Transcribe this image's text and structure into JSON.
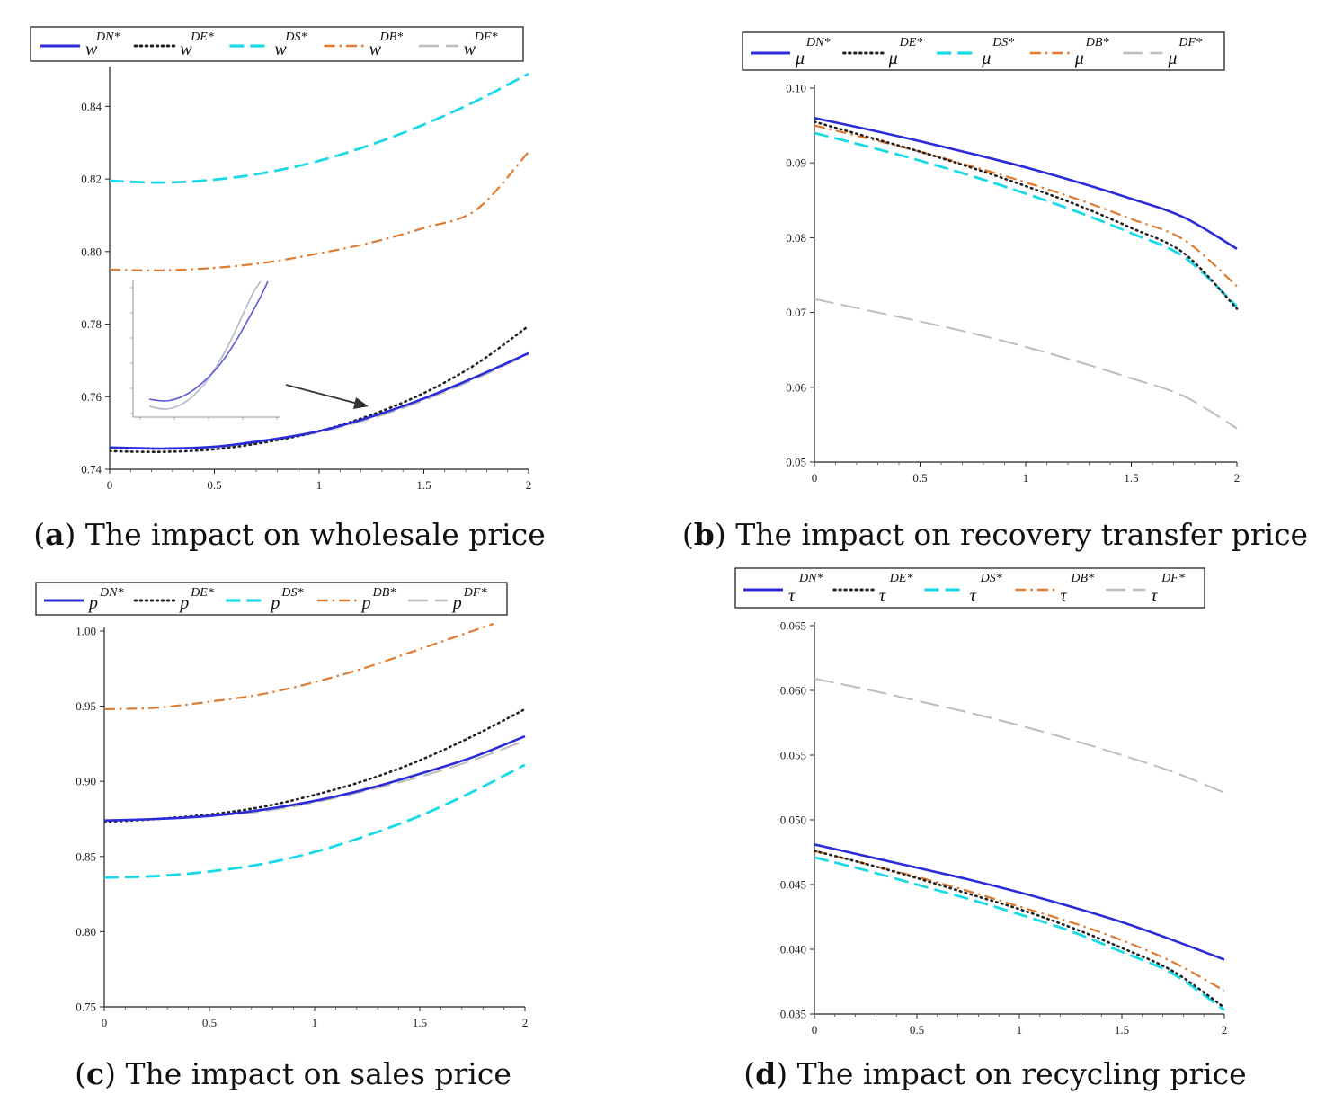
{
  "figure": {
    "captions": [
      {
        "letter": "a",
        "text": ") The impact on wholesale price"
      },
      {
        "letter": "b",
        "text": ") The impact on recovery transfer price"
      },
      {
        "letter": "c",
        "text": ") The impact on sales price"
      },
      {
        "letter": "d",
        "text": ") The impact on recycling price"
      }
    ]
  },
  "chart_data": [
    {
      "id": "a",
      "type": "line",
      "title": "The impact on wholesale price",
      "legend_symbol": "w",
      "x": [
        0,
        0.25,
        0.5,
        0.75,
        1,
        1.25,
        1.5,
        1.75,
        2
      ],
      "xlim": [
        0,
        2
      ],
      "ylim": [
        0.74,
        0.85
      ],
      "xticks": [
        "0",
        "0.5",
        "1",
        "1.5",
        "2"
      ],
      "yticks": [
        "0.74",
        "0.76",
        "0.78",
        "0.80",
        "0.82",
        "0.84"
      ],
      "ytick_values": [
        0.74,
        0.76,
        0.78,
        0.8,
        0.82,
        0.84
      ],
      "has_inset": true,
      "series": [
        {
          "name": "DN*",
          "color": "#2b2bd9",
          "style": "solid",
          "values": [
            0.746,
            0.7457,
            0.7462,
            0.748,
            0.7505,
            0.7545,
            0.7595,
            0.7655,
            0.772
          ]
        },
        {
          "name": "DE*",
          "color": "#222222",
          "style": "dotted",
          "values": [
            0.745,
            0.7448,
            0.7455,
            0.7475,
            0.7505,
            0.755,
            0.761,
            0.769,
            0.7795
          ]
        },
        {
          "name": "DS*",
          "color": "#19d9e6",
          "style": "dashed",
          "values": [
            0.8195,
            0.819,
            0.8198,
            0.8218,
            0.825,
            0.8295,
            0.835,
            0.8415,
            0.849
          ]
        },
        {
          "name": "DB*",
          "color": "#e07a2f",
          "style": "dashdot",
          "values": [
            0.795,
            0.7948,
            0.7955,
            0.797,
            0.7995,
            0.8025,
            0.8065,
            0.8115,
            0.8275
          ]
        },
        {
          "name": "DF*",
          "color": "#bdbdbd",
          "style": "longdash",
          "values": [
            0.746,
            0.7456,
            0.746,
            0.7477,
            0.7502,
            0.754,
            0.759,
            0.765,
            0.7718
          ]
        }
      ]
    },
    {
      "id": "b",
      "type": "line",
      "title": "The impact on recovery transfer price",
      "legend_symbol": "μ",
      "x": [
        0,
        0.25,
        0.5,
        0.75,
        1,
        1.25,
        1.5,
        1.75,
        2
      ],
      "xlim": [
        0,
        2
      ],
      "ylim": [
        0.05,
        0.1
      ],
      "xticks": [
        "0",
        "0.5",
        "1",
        "1.5",
        "2"
      ],
      "yticks": [
        "0.05",
        "0.06",
        "0.07",
        "0.08",
        "0.09",
        "0.10"
      ],
      "ytick_values": [
        0.05,
        0.06,
        0.07,
        0.08,
        0.09,
        0.1
      ],
      "has_inset": false,
      "series": [
        {
          "name": "DN*",
          "color": "#2b2bd9",
          "style": "solid",
          "values": [
            0.096,
            0.0945,
            0.0929,
            0.0912,
            0.0894,
            0.0874,
            0.0852,
            0.0827,
            0.0785
          ]
        },
        {
          "name": "DE*",
          "color": "#222222",
          "style": "dotted",
          "values": [
            0.0955,
            0.0935,
            0.0915,
            0.0893,
            0.0869,
            0.0843,
            0.0813,
            0.0779,
            0.0705
          ]
        },
        {
          "name": "DS*",
          "color": "#19d9e6",
          "style": "dashed",
          "values": [
            0.094,
            0.0922,
            0.0903,
            0.0882,
            0.0859,
            0.0834,
            0.0806,
            0.0774,
            0.0708
          ]
        },
        {
          "name": "DB*",
          "color": "#e07a2f",
          "style": "dashdot",
          "values": [
            0.095,
            0.0933,
            0.0915,
            0.0895,
            0.0874,
            0.0851,
            0.0825,
            0.0797,
            0.0735
          ]
        },
        {
          "name": "DF*",
          "color": "#bdbdbd",
          "style": "longdash",
          "values": [
            0.0718,
            0.0703,
            0.0688,
            0.0672,
            0.0654,
            0.0634,
            0.0612,
            0.0588,
            0.0545
          ]
        }
      ]
    },
    {
      "id": "c",
      "type": "line",
      "title": "The impact on sales price",
      "legend_symbol": "p",
      "x": [
        0,
        0.25,
        0.5,
        0.75,
        1,
        1.25,
        1.5,
        1.75,
        2
      ],
      "xlim": [
        0,
        2
      ],
      "ylim": [
        0.75,
        1.0
      ],
      "xticks": [
        "0",
        "0.5",
        "1",
        "1.5",
        "2"
      ],
      "yticks": [
        "0.75",
        "0.80",
        "0.85",
        "0.90",
        "0.95",
        "1.00"
      ],
      "ytick_values": [
        0.75,
        0.8,
        0.85,
        0.9,
        0.95,
        1.0
      ],
      "has_inset": false,
      "series": [
        {
          "name": "DN*",
          "color": "#2b2bd9",
          "style": "solid",
          "values": [
            0.874,
            0.875,
            0.877,
            0.881,
            0.887,
            0.895,
            0.905,
            0.916,
            0.93
          ]
        },
        {
          "name": "DE*",
          "color": "#222222",
          "style": "dotted",
          "values": [
            0.873,
            0.875,
            0.878,
            0.883,
            0.891,
            0.901,
            0.914,
            0.93,
            0.948
          ]
        },
        {
          "name": "DS*",
          "color": "#19d9e6",
          "style": "dashed",
          "values": [
            0.836,
            0.837,
            0.84,
            0.845,
            0.853,
            0.864,
            0.877,
            0.893,
            0.911
          ]
        },
        {
          "name": "DB*",
          "color": "#e07a2f",
          "style": "dashdot",
          "values": [
            0.948,
            0.949,
            0.953,
            0.958,
            0.966,
            0.976,
            0.988,
            1.0,
            null
          ]
        },
        {
          "name": "DF*",
          "color": "#bdbdbd",
          "style": "longdash",
          "values": [
            0.874,
            0.875,
            0.877,
            0.88,
            0.886,
            0.894,
            0.903,
            0.914,
            0.927
          ]
        }
      ]
    },
    {
      "id": "d",
      "type": "line",
      "title": "The impact on recycling price",
      "legend_symbol": "τ",
      "x": [
        0,
        0.25,
        0.5,
        0.75,
        1,
        1.25,
        1.5,
        1.75,
        2
      ],
      "xlim": [
        0,
        2
      ],
      "ylim": [
        0.035,
        0.065
      ],
      "xticks": [
        "0",
        "0.5",
        "1",
        "1.5",
        "2"
      ],
      "yticks": [
        "0.035",
        "0.040",
        "0.045",
        "0.050",
        "0.055",
        "0.060",
        "0.065"
      ],
      "ytick_values": [
        0.035,
        0.04,
        0.045,
        0.05,
        0.055,
        0.06,
        0.065
      ],
      "has_inset": false,
      "series": [
        {
          "name": "DN*",
          "color": "#2b2bd9",
          "style": "solid",
          "values": [
            0.0481,
            0.0472,
            0.0463,
            0.0454,
            0.0444,
            0.0433,
            0.0421,
            0.0407,
            0.0392
          ]
        },
        {
          "name": "DE*",
          "color": "#222222",
          "style": "dotted",
          "values": [
            0.0476,
            0.0466,
            0.0455,
            0.0443,
            0.0431,
            0.0417,
            0.0401,
            0.0383,
            0.0355
          ]
        },
        {
          "name": "DS*",
          "color": "#19d9e6",
          "style": "dashed",
          "values": [
            0.0471,
            0.0461,
            0.045,
            0.0439,
            0.0427,
            0.0414,
            0.0398,
            0.0381,
            0.0353
          ]
        },
        {
          "name": "DB*",
          "color": "#e07a2f",
          "style": "dashdot",
          "values": [
            0.0476,
            0.0466,
            0.0456,
            0.0445,
            0.0433,
            0.0421,
            0.0407,
            0.039,
            0.0368
          ]
        },
        {
          "name": "DF*",
          "color": "#bdbdbd",
          "style": "longdash",
          "values": [
            0.0609,
            0.0601,
            0.0592,
            0.0583,
            0.0573,
            0.0562,
            0.055,
            0.0537,
            0.0521
          ]
        }
      ]
    }
  ]
}
